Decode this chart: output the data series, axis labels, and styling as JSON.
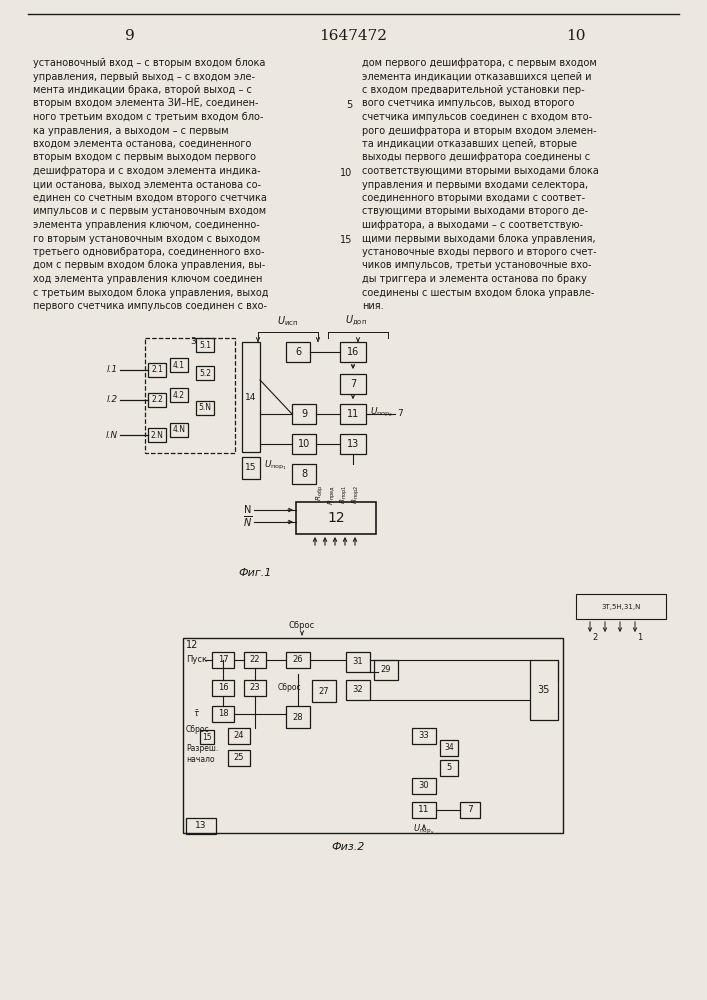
{
  "bg_color": "#ece8df",
  "text_color": "#1a1a1a",
  "line_color": "#1a1a1a",
  "page_left": "9",
  "page_center": "1647472",
  "page_right": "10",
  "fig1_caption": "Фиг.1",
  "fig2_caption": "Физ.2",
  "left_col": [
    "установочный вход – с вторым входом блока",
    "управления, первый выход – с входом эле-",
    "мента индикации брака, второй выход – с",
    "вторым входом элемента ЗИ–НЕ, соединен-",
    "ного третьим входом с третьим входом бло-",
    "ка управления, а выходом – с первым",
    "входом элемента останова, соединенного",
    "вторым входом с первым выходом первого",
    "дешифратора и с входом элемента индика-",
    "ции останова, выход элемента останова со-",
    "единен со счетным входом второго счетчика",
    "импульсов и с первым установочным входом",
    "элемента управления ключом, соединенно-",
    "го вторым установочным входом с выходом",
    "третьего одновибратора, соединенного вхо-",
    "дом с первым входом блока управления, вы-",
    "ход элемента управления ключом соединен",
    "с третьим выходом блока управления, выход",
    "первого счетчика импульсов соединен с вхо-"
  ],
  "right_col": [
    "дом первого дешифратора, с первым входом",
    "элемента индикации отказавшихся цепей и",
    "с входом предварительной установки пер-",
    "вого счетчика импульсов, выход второго",
    "счетчика импульсов соединен с входом вто-",
    "рого дешифратора и вторым входом элемен-",
    "та индикации отказавших цепей, вторые",
    "выходы первого дешифратора соединены с",
    "соответствующими вторыми выходами блока",
    "управления и первыми входами селектора,",
    "соединенного вторыми входами с соответ-",
    "ствующими вторыми выходами второго де-",
    "шифратора, а выходами – с соответствую-",
    "щими первыми выходами блока управления,",
    "установочные входы первого и второго счет-",
    "чиков импульсов, третьи установочные вхо-",
    "ды триггера и элемента останова по браку",
    "соединены с шестым входом блока управле-",
    "ния."
  ]
}
